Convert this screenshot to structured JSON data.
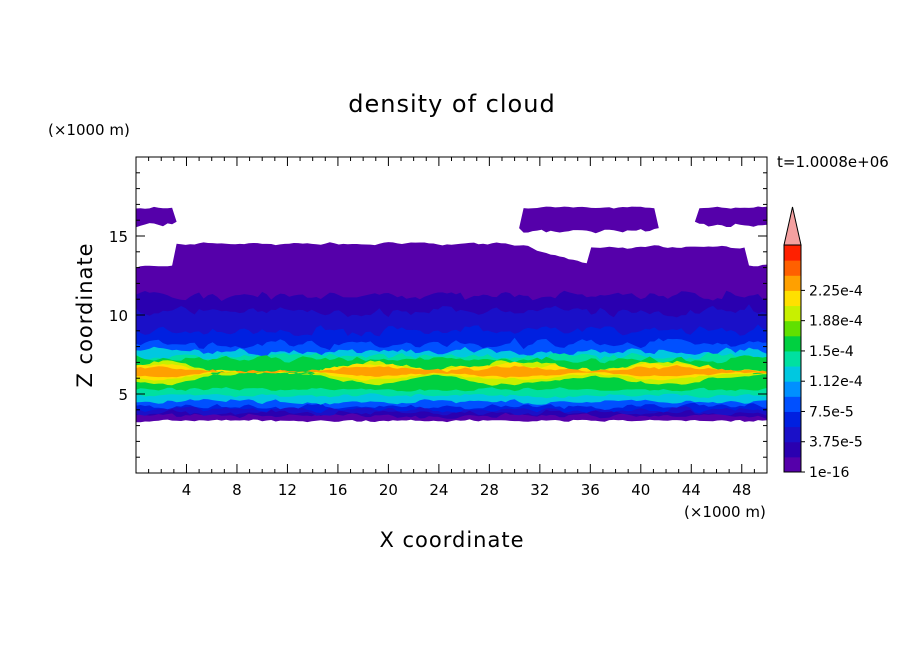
{
  "chart_data": {
    "type": "heatmap",
    "title": "density of cloud",
    "xlabel": "X coordinate",
    "ylabel": "Z coordinate",
    "x_unit": "(×1000 m)",
    "y_unit": "(×1000 m)",
    "time_label": "t=1.0008e+06",
    "xlim": [
      0,
      50
    ],
    "ylim": [
      0,
      20
    ],
    "x_ticks": [
      4,
      8,
      12,
      16,
      20,
      24,
      28,
      32,
      36,
      40,
      44,
      48
    ],
    "y_ticks": [
      5,
      10,
      15
    ],
    "colorbar": {
      "labels": [
        "1e-16",
        "3.75e-5",
        "7.5e-5",
        "1.12e-4",
        "1.5e-4",
        "1.88e-4",
        "2.25e-4"
      ],
      "levels": [
        1e-16,
        1.875e-05,
        3.75e-05,
        5.625e-05,
        7.5e-05,
        9.375e-05,
        0.0001125,
        0.00013125,
        0.00015,
        0.00016875,
        0.0001875,
        0.00020625,
        0.000225,
        0.00024375
      ],
      "colors": [
        "#5500aa",
        "#2a00b0",
        "#1a10c8",
        "#0020e0",
        "#0050ff",
        "#0090ff",
        "#00c8e0",
        "#00e0a0",
        "#00d040",
        "#60e000",
        "#c8f000",
        "#ffe000",
        "#ffa000",
        "#ff6000",
        "#ff2000"
      ],
      "extend_color": "#f4a0a0"
    },
    "layers": [
      {
        "z_range": [
          3.3,
          16.5
        ],
        "density": 1e-16,
        "note_text": ""
      },
      {
        "z_range": [
          3.5,
          10.5
        ],
        "density": 3.75e-05
      },
      {
        "z_range": [
          4.0,
          8.0
        ],
        "density": 7.5e-05
      },
      {
        "z_range": [
          4.8,
          7.5
        ],
        "density": 0.000112
      },
      {
        "z_range": [
          5.3,
          7.2
        ],
        "density": 0.00015
      },
      {
        "z_range": [
          5.8,
          7.0
        ],
        "density": 0.000225
      }
    ]
  }
}
